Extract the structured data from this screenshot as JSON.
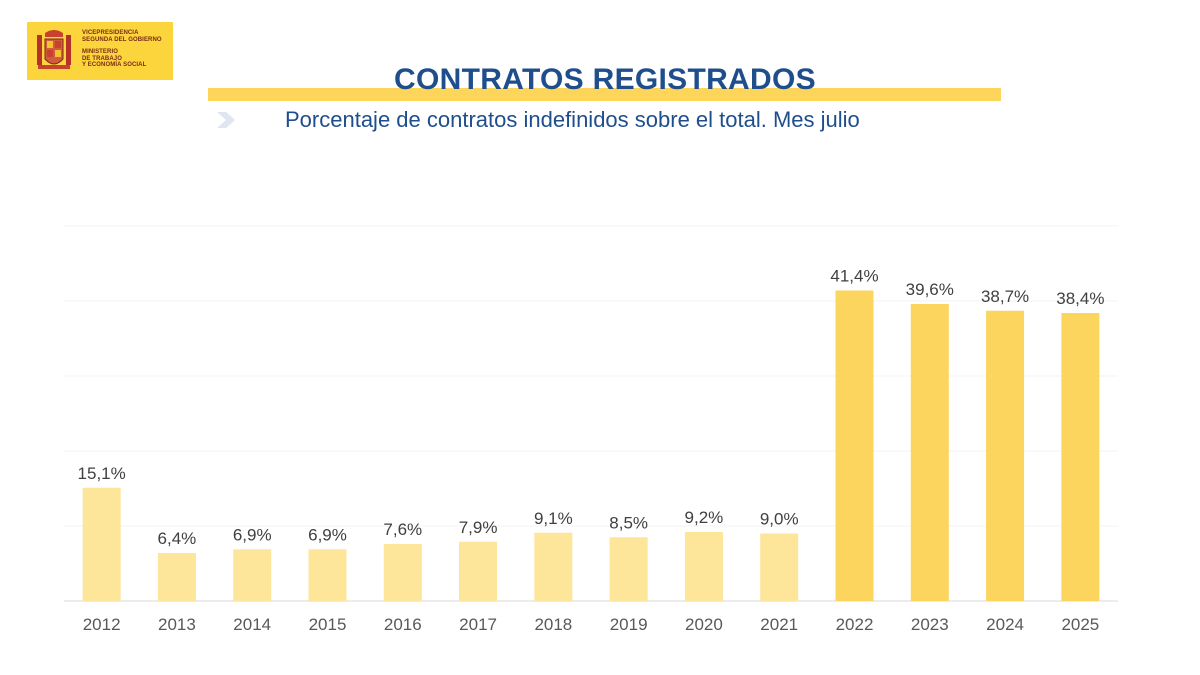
{
  "logo": {
    "line1": "VICEPRESIDENCIA",
    "line2": "SEGUNDA DEL GOBIERNO",
    "line3": "MINISTERIO",
    "line4": "DE TRABAJO",
    "line5": "Y ECONOMÍA SOCIAL"
  },
  "header": {
    "title": "CONTRATOS REGISTRADOS",
    "subtitle": "Porcentaje de contratos indefinidos sobre el total. Mes julio"
  },
  "colors": {
    "bar_light": "#fde59a",
    "bar_dark": "#fcd55f",
    "title_blue": "#1f4e8c",
    "band_yellow": "#fcd55a"
  },
  "chart_data": {
    "type": "bar",
    "categories": [
      "2012",
      "2013",
      "2014",
      "2015",
      "2016",
      "2017",
      "2018",
      "2019",
      "2020",
      "2021",
      "2022",
      "2023",
      "2024",
      "2025"
    ],
    "values": [
      15.1,
      6.4,
      6.9,
      6.9,
      7.6,
      7.9,
      9.1,
      8.5,
      9.2,
      9.0,
      41.4,
      39.6,
      38.7,
      38.4
    ],
    "labels": [
      "15,1%",
      "6,4%",
      "6,9%",
      "6,9%",
      "7,6%",
      "7,9%",
      "9,1%",
      "8,5%",
      "9,2%",
      "9,0%",
      "41,4%",
      "39,6%",
      "38,7%",
      "38,4%"
    ],
    "title": "CONTRATOS REGISTRADOS",
    "subtitle": "Porcentaje de contratos indefinidos sobre el total. Mes julio",
    "xlabel": "",
    "ylabel": "",
    "ylim": [
      0,
      50
    ],
    "grid": true,
    "legend": "none"
  }
}
